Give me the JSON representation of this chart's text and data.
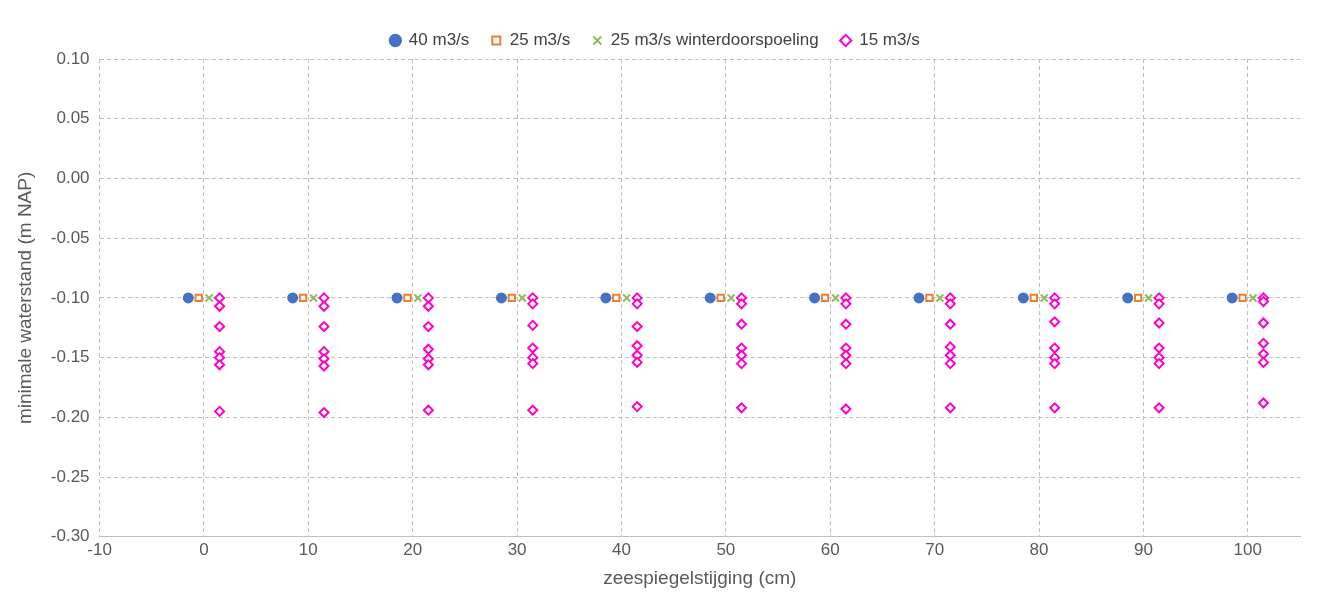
{
  "chart_data": {
    "type": "scatter",
    "xlabel": "zeespiegelstijging (cm)",
    "ylabel": "minimale waterstand (m NAP)",
    "xlim": [
      -10,
      105
    ],
    "xticks": [
      -10,
      0,
      10,
      20,
      30,
      40,
      50,
      60,
      70,
      80,
      90,
      100
    ],
    "ylim": [
      -0.3,
      0.1
    ],
    "yticks": [
      {
        "value": -0.3,
        "label": "-0.30"
      },
      {
        "value": -0.25,
        "label": "-0.25"
      },
      {
        "value": -0.2,
        "label": "-0.20"
      },
      {
        "value": -0.15,
        "label": "-0.15"
      },
      {
        "value": -0.1,
        "label": "-0.10"
      },
      {
        "value": -0.05,
        "label": "-0.05"
      },
      {
        "value": 0,
        "label": "0.00"
      },
      {
        "value": 0.05,
        "label": "0.05"
      },
      {
        "value": 0.1,
        "label": "0.10"
      }
    ],
    "grid": true,
    "legend": "top",
    "series": [
      {
        "name": "40 m3/s",
        "color": "#4472c4",
        "marker": "circle",
        "x": [
          -1.5,
          8.5,
          18.5,
          28.5,
          38.5,
          48.5,
          58.5,
          68.5,
          78.5,
          88.5,
          98.5
        ],
        "values": [
          -0.1,
          -0.1,
          -0.1,
          -0.1,
          -0.1,
          -0.1,
          -0.1,
          -0.1,
          -0.1,
          -0.1,
          -0.1
        ]
      },
      {
        "name": "25 m3/s",
        "color": "#ed7d31",
        "marker": "square",
        "x": [
          -0.5,
          9.5,
          19.5,
          29.5,
          39.5,
          49.5,
          59.5,
          69.5,
          79.5,
          89.5,
          99.5
        ],
        "values": [
          -0.1,
          -0.1,
          -0.1,
          -0.1,
          -0.1,
          -0.1,
          -0.1,
          -0.1,
          -0.1,
          -0.1,
          -0.1
        ]
      },
      {
        "name": "25 m3/s winterdoorspoeling",
        "color": "#8fbc5a",
        "marker": "cross",
        "x": [
          0.5,
          10.5,
          20.5,
          30.5,
          40.5,
          50.5,
          60.5,
          70.5,
          80.5,
          90.5,
          100.5
        ],
        "values": [
          -0.1,
          -0.1,
          -0.1,
          -0.1,
          -0.1,
          -0.1,
          -0.1,
          -0.1,
          -0.1,
          -0.1,
          -0.1
        ]
      },
      {
        "name": "15 m3/s",
        "color": "#ff00cc",
        "marker": "diamond",
        "x": [
          1.5,
          1.5,
          1.5,
          1.5,
          1.5,
          1.5,
          1.5,
          11.5,
          11.5,
          11.5,
          11.5,
          11.5,
          11.5,
          11.5,
          21.5,
          21.5,
          21.5,
          21.5,
          21.5,
          21.5,
          21.5,
          31.5,
          31.5,
          31.5,
          31.5,
          31.5,
          31.5,
          31.5,
          41.5,
          41.5,
          41.5,
          41.5,
          41.5,
          41.5,
          41.5,
          51.5,
          51.5,
          51.5,
          51.5,
          51.5,
          51.5,
          51.5,
          61.5,
          61.5,
          61.5,
          61.5,
          61.5,
          61.5,
          61.5,
          71.5,
          71.5,
          71.5,
          71.5,
          71.5,
          71.5,
          71.5,
          81.5,
          81.5,
          81.5,
          81.5,
          81.5,
          81.5,
          81.5,
          91.5,
          91.5,
          91.5,
          91.5,
          91.5,
          91.5,
          91.5,
          101.5,
          101.5,
          101.5,
          101.5,
          101.5,
          101.5,
          101.5
        ],
        "values": [
          -0.1,
          -0.107,
          -0.124,
          -0.145,
          -0.15,
          -0.156,
          -0.195,
          -0.1,
          -0.107,
          -0.124,
          -0.145,
          -0.151,
          -0.157,
          -0.196,
          -0.1,
          -0.107,
          -0.124,
          -0.143,
          -0.151,
          -0.156,
          -0.194,
          -0.1,
          -0.105,
          -0.123,
          -0.142,
          -0.15,
          -0.155,
          -0.194,
          -0.1,
          -0.105,
          -0.124,
          -0.14,
          -0.148,
          -0.154,
          -0.191,
          -0.1,
          -0.105,
          -0.122,
          -0.142,
          -0.148,
          -0.155,
          -0.192,
          -0.1,
          -0.105,
          -0.122,
          -0.142,
          -0.148,
          -0.155,
          -0.193,
          -0.1,
          -0.105,
          -0.122,
          -0.141,
          -0.148,
          -0.155,
          -0.192,
          -0.1,
          -0.105,
          -0.12,
          -0.142,
          -0.15,
          -0.155,
          -0.192,
          -0.1,
          -0.105,
          -0.121,
          -0.142,
          -0.15,
          -0.155,
          -0.192,
          -0.1,
          -0.103,
          -0.121,
          -0.138,
          -0.147,
          -0.154,
          -0.188
        ]
      }
    ]
  }
}
